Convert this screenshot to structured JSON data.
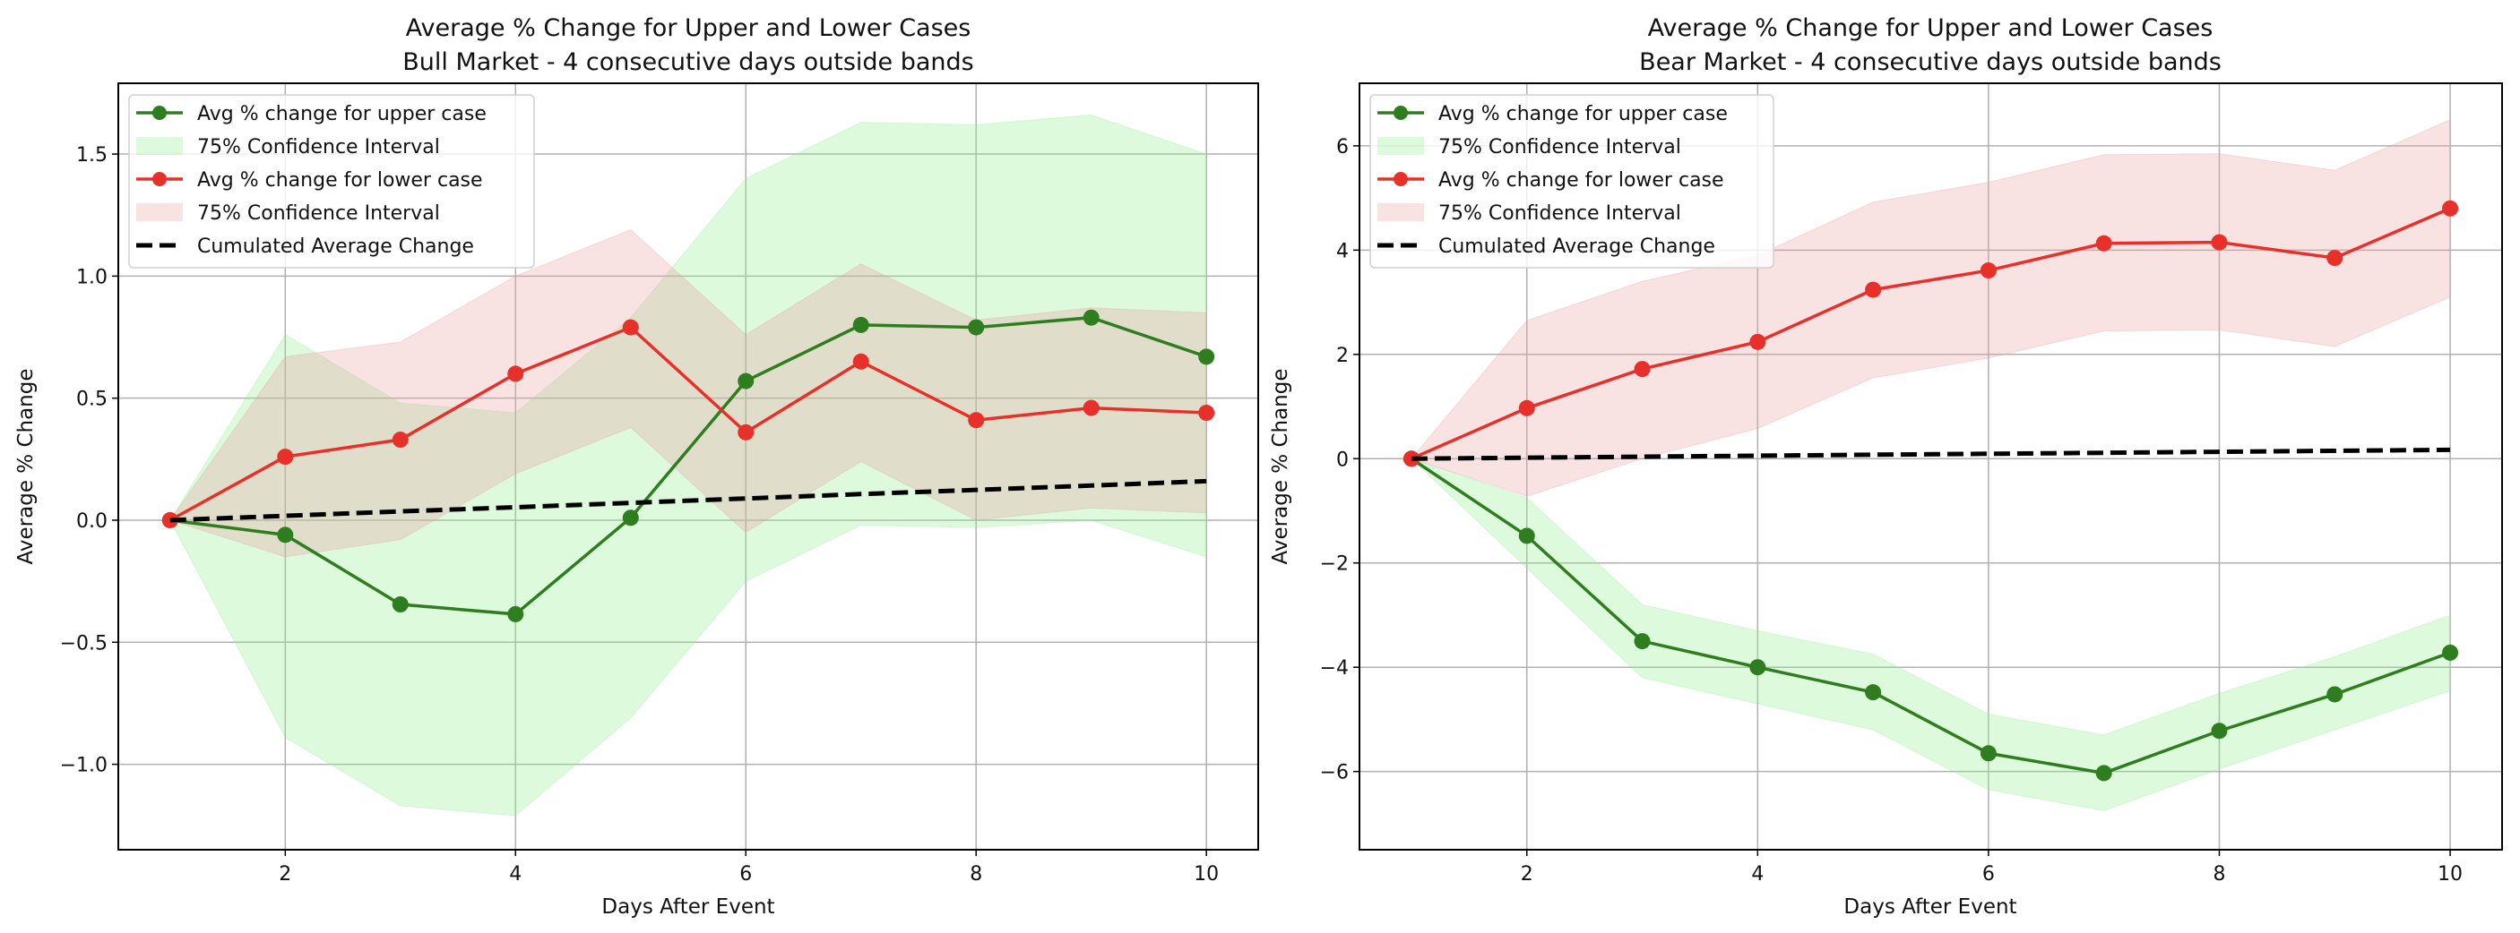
{
  "chart_data": [
    {
      "type": "line",
      "title": "Average % Change for Upper and Lower Cases",
      "subtitle": "Bull Market - 4 consecutive days outside bands",
      "xlabel": "Days After Event",
      "ylabel": "Average % Change",
      "xlim": [
        0.55,
        10.45
      ],
      "ylim": [
        -1.35,
        1.79
      ],
      "xticks": [
        2,
        4,
        6,
        8,
        10
      ],
      "yticks": [
        -1.0,
        -0.5,
        0.0,
        0.5,
        1.0,
        1.5
      ],
      "ytick_labels": [
        "−1.0",
        "−0.5",
        "0.0",
        "0.5",
        "1.0",
        "1.5"
      ],
      "grid": true,
      "legend_position": "top-left",
      "x": [
        1,
        2,
        3,
        4,
        5,
        6,
        7,
        8,
        9,
        10
      ],
      "series": [
        {
          "name": "Avg % change for upper case",
          "color": "#2e7d1f",
          "marker": "circle",
          "values": [
            0,
            -0.06,
            -0.345,
            -0.385,
            0.01,
            0.57,
            0.8,
            0.79,
            0.83,
            0.67
          ]
        },
        {
          "name": "75% Confidence Interval",
          "kind": "band",
          "color": "#90ee90",
          "lower": [
            0,
            -0.89,
            -1.17,
            -1.21,
            -0.81,
            -0.25,
            -0.02,
            -0.03,
            0.0,
            -0.15
          ],
          "upper": [
            0,
            0.76,
            0.48,
            0.44,
            0.83,
            1.4,
            1.63,
            1.62,
            1.66,
            1.5
          ]
        },
        {
          "name": "Avg % change for lower case",
          "color": "#e8302a",
          "marker": "circle",
          "values": [
            0,
            0.26,
            0.33,
            0.6,
            0.79,
            0.36,
            0.65,
            0.41,
            0.46,
            0.44
          ]
        },
        {
          "name": "75% Confidence Interval",
          "kind": "band",
          "color": "#e8a0a0",
          "lower": [
            0,
            -0.15,
            -0.08,
            0.19,
            0.38,
            -0.05,
            0.24,
            0.0,
            0.05,
            0.03
          ],
          "upper": [
            0,
            0.67,
            0.73,
            1.0,
            1.19,
            0.76,
            1.05,
            0.82,
            0.87,
            0.85
          ]
        },
        {
          "name": "Cumulated Average Change",
          "color": "#000000",
          "dashed": true,
          "values": [
            0,
            0.018,
            0.036,
            0.053,
            0.071,
            0.089,
            0.107,
            0.124,
            0.142,
            0.16
          ]
        }
      ]
    },
    {
      "type": "line",
      "title": "Average % Change for Upper and Lower Cases",
      "subtitle": "Bear Market - 4 consecutive days outside bands",
      "xlabel": "Days After Event",
      "ylabel": "Average % Change",
      "xlim": [
        0.55,
        10.45
      ],
      "ylim": [
        -7.5,
        7.2
      ],
      "xticks": [
        2,
        4,
        6,
        8,
        10
      ],
      "yticks": [
        -6,
        -4,
        -2,
        0,
        2,
        4,
        6
      ],
      "ytick_labels": [
        "−6",
        "−4",
        "−2",
        "0",
        "2",
        "4",
        "6"
      ],
      "grid": true,
      "legend_position": "top-left",
      "x": [
        1,
        2,
        3,
        4,
        5,
        6,
        7,
        8,
        9,
        10
      ],
      "series": [
        {
          "name": "Avg % change for upper case",
          "color": "#2e7d1f",
          "marker": "circle",
          "values": [
            0,
            -1.48,
            -3.5,
            -4.0,
            -4.48,
            -5.65,
            -6.03,
            -5.22,
            -4.52,
            -3.72
          ]
        },
        {
          "name": "75% Confidence Interval",
          "kind": "band",
          "color": "#90ee90",
          "lower": [
            0,
            -2.1,
            -4.2,
            -4.7,
            -5.2,
            -6.35,
            -6.75,
            -5.95,
            -5.2,
            -4.45
          ],
          "upper": [
            0,
            -0.75,
            -2.8,
            -3.3,
            -3.75,
            -4.9,
            -5.3,
            -4.5,
            -3.8,
            -3.0
          ]
        },
        {
          "name": "Avg % change for lower case",
          "color": "#e8302a",
          "marker": "circle",
          "values": [
            0,
            0.97,
            1.72,
            2.24,
            3.24,
            3.61,
            4.13,
            4.15,
            3.85,
            4.8
          ]
        },
        {
          "name": "75% Confidence Interval",
          "kind": "band",
          "color": "#e8a0a0",
          "lower": [
            0,
            -0.72,
            0.0,
            0.58,
            1.55,
            1.93,
            2.45,
            2.47,
            2.15,
            3.1
          ],
          "upper": [
            0,
            2.65,
            3.4,
            3.9,
            4.92,
            5.3,
            5.83,
            5.85,
            5.53,
            6.5
          ]
        },
        {
          "name": "Cumulated Average Change",
          "color": "#000000",
          "dashed": true,
          "values": [
            0,
            0.019,
            0.038,
            0.057,
            0.076,
            0.094,
            0.113,
            0.132,
            0.151,
            0.17
          ]
        }
      ]
    }
  ]
}
